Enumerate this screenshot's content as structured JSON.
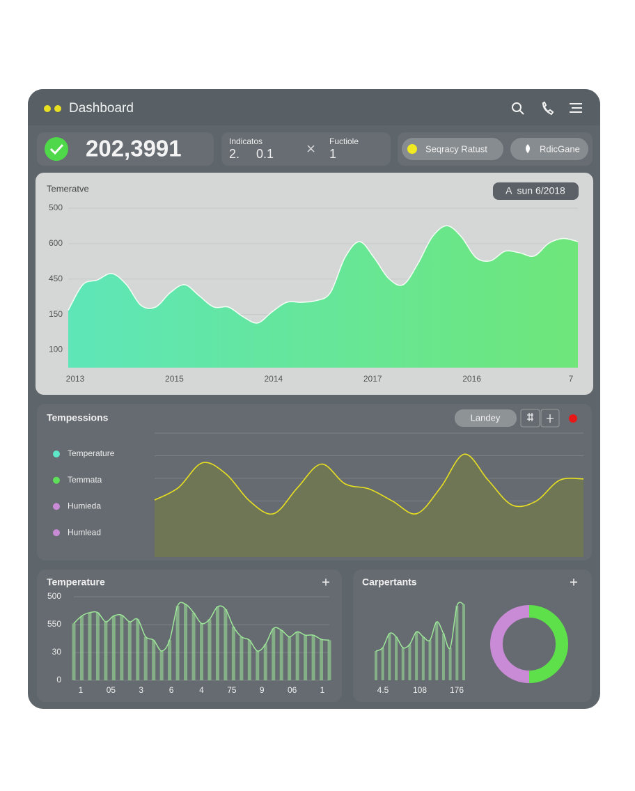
{
  "header": {
    "title": "Dashboard"
  },
  "kpi": {
    "value": "202,3991",
    "indicator": {
      "label": "Indicatos",
      "values": [
        "2.",
        "0.1"
      ]
    },
    "function": {
      "label": "Fuctiole",
      "value": "1"
    },
    "buttons": [
      "Seqracy Ratust",
      "RdicGane"
    ]
  },
  "chart_data": [
    {
      "type": "area",
      "title": "Temeratve",
      "badge": "A  sun 6/2018",
      "y_labels": [
        "500",
        "600",
        "450",
        "150",
        "100"
      ],
      "x_labels": [
        "2013",
        "2015",
        "2014",
        "2017",
        "2016",
        "7"
      ],
      "ylim": [
        0,
        100
      ],
      "values": [
        36,
        52,
        55,
        59,
        52,
        39,
        38,
        47,
        52,
        45,
        38,
        38,
        32,
        28,
        35,
        41,
        41,
        42,
        47,
        69,
        79,
        69,
        56,
        52,
        65,
        82,
        89,
        82,
        69,
        67,
        73,
        72,
        70,
        78,
        81,
        79
      ],
      "colors": [
        "#5ee6b8",
        "#6ee67a"
      ]
    },
    {
      "type": "line",
      "title": "Tempessions",
      "button": "Landey",
      "legend": [
        {
          "name": "Temperature",
          "color": "#5ee6c8"
        },
        {
          "name": "Temmata",
          "color": "#5ee05a"
        },
        {
          "name": "Humieda",
          "color": "#c98bd6"
        },
        {
          "name": "Humlead",
          "color": "#c98bd6"
        }
      ],
      "ylim": [
        0,
        100
      ],
      "values": [
        46,
        56,
        76,
        67,
        45,
        35,
        56,
        75,
        59,
        55,
        45,
        35,
        56,
        83,
        62,
        42,
        45,
        62,
        63
      ],
      "color": "#e8e020"
    },
    {
      "type": "bar",
      "title": "Temperature",
      "y_labels": [
        "500",
        "550",
        "30",
        "0"
      ],
      "x_labels": [
        "1",
        "05",
        "3",
        "6",
        "4",
        "75",
        "9",
        "06",
        "1"
      ],
      "ylim": [
        0,
        100
      ],
      "values": [
        68,
        77,
        81,
        81,
        70,
        77,
        78,
        70,
        73,
        52,
        48,
        35,
        48,
        89,
        91,
        81,
        68,
        73,
        88,
        85,
        64,
        52,
        48,
        35,
        43,
        62,
        60,
        52,
        58,
        54,
        54,
        49,
        48
      ],
      "color": "#9ee89a"
    },
    {
      "type": "bar",
      "title": "Carpertants",
      "x_labels": [
        "4.5",
        "108",
        "176"
      ],
      "ylim": [
        0,
        100
      ],
      "values": [
        35,
        39,
        56,
        52,
        39,
        43,
        58,
        52,
        48,
        70,
        56,
        39,
        89,
        91
      ],
      "color": "#9ee89a"
    },
    {
      "type": "pie",
      "values": [
        50,
        50
      ],
      "colors": [
        "#5ee04a",
        "#c98bd6"
      ]
    }
  ]
}
